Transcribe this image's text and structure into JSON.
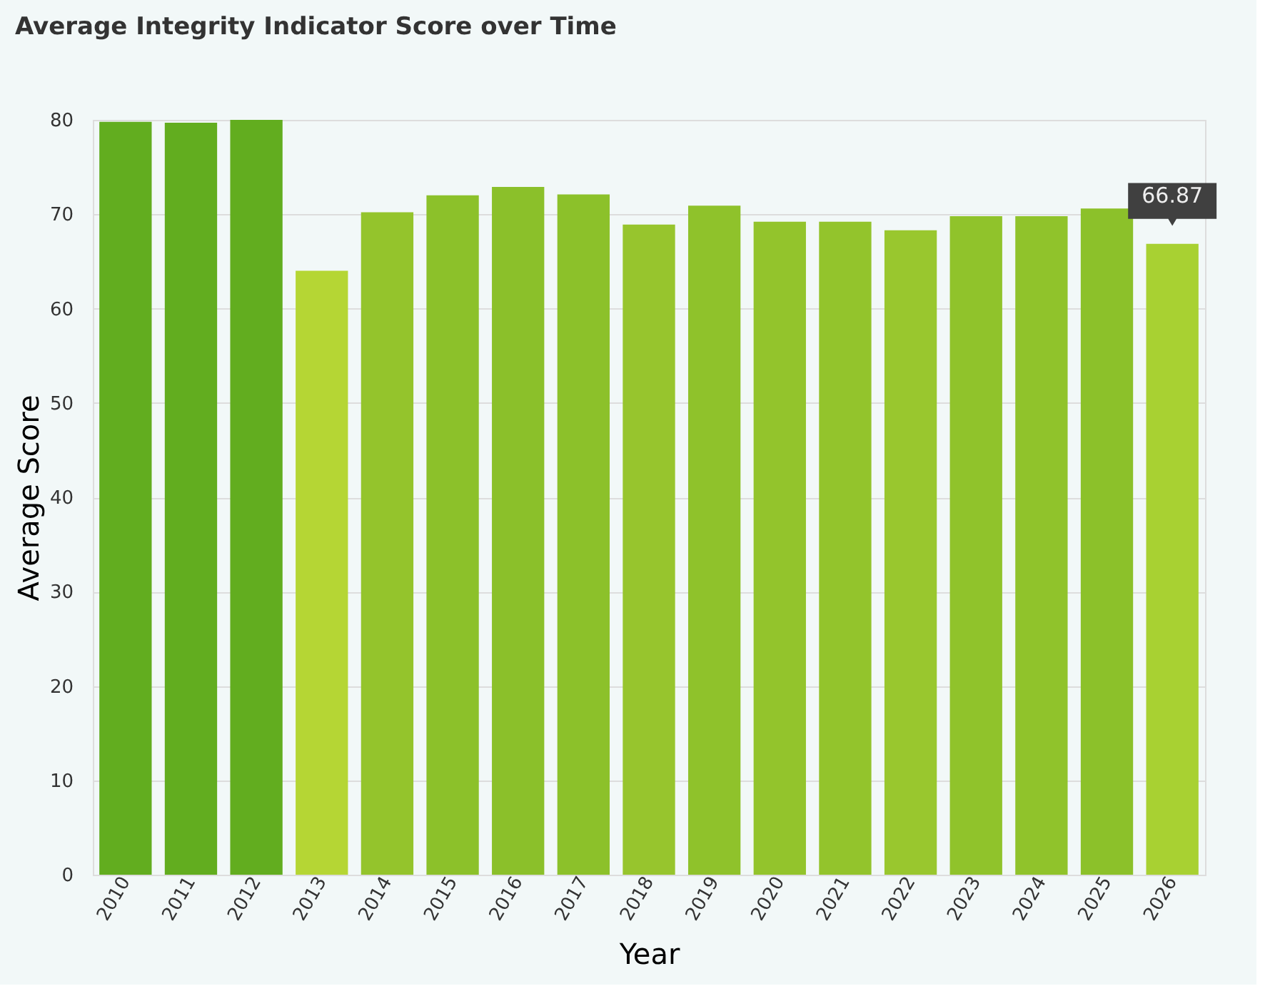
{
  "chart_data": {
    "type": "bar",
    "title": "Average Integrity Indicator Score over Time",
    "xlabel": "Year",
    "ylabel": "Average Score",
    "categories": [
      "2010",
      "2011",
      "2012",
      "2013",
      "2014",
      "2015",
      "2016",
      "2017",
      "2018",
      "2019",
      "2020",
      "2021",
      "2022",
      "2023",
      "2024",
      "2025",
      "2026"
    ],
    "values": [
      79.8,
      79.7,
      80.0,
      64.0,
      70.2,
      72.0,
      72.9,
      72.1,
      68.9,
      70.9,
      69.2,
      69.2,
      68.3,
      69.8,
      69.8,
      70.6,
      66.87
    ],
    "colors": [
      "#62ad1f",
      "#62ad1f",
      "#62ad1f",
      "#b5d634",
      "#94c42c",
      "#8cc12a",
      "#8bc02a",
      "#8cc12a",
      "#97c52d",
      "#8fc22b",
      "#93c42c",
      "#93c42c",
      "#99c72e",
      "#90c32b",
      "#90c32b",
      "#8cc12a",
      "#a8d132"
    ],
    "ylim": [
      0,
      80
    ],
    "yticks": [
      0,
      10,
      20,
      30,
      40,
      50,
      60,
      70,
      80
    ],
    "grid": "y",
    "annotations": [
      {
        "text": "66.87",
        "x": "2026",
        "y": 66.87
      }
    ]
  }
}
